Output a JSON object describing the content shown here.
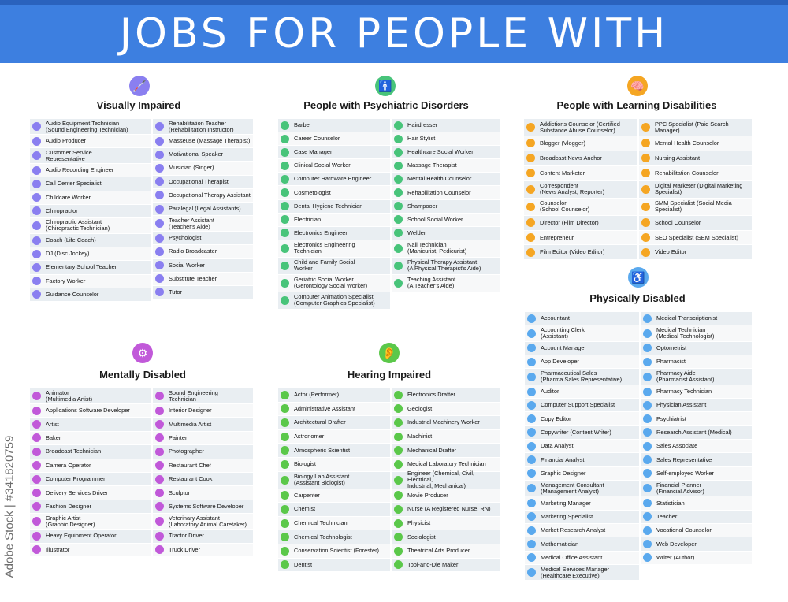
{
  "title": "JOBS FOR PEOPLE WITH DISABILITIES",
  "watermark": "Adobe Stock | #341820759",
  "sections": {
    "visual": {
      "title": "Visually Impaired",
      "icon": "blind-person-icon",
      "color": "#8a7ff0",
      "col1": [
        "Audio Equipment Technician\n(Sound Engineering Technician)",
        "Audio Producer",
        "Customer Service\nRepresentative",
        "Audio Recording Engineer",
        "Call Center Specialist",
        "Childcare Worker",
        "Chiropractor",
        "Chiropractic Assistant\n(Chiropractic Technician)",
        "Coach (Life Coach)",
        "DJ (Disc Jockey)",
        "Elementary School Teacher",
        "Factory Worker",
        "Guidance Counselor"
      ],
      "col2": [
        "Rehabilitation Teacher\n(Rehabilitation Instructor)",
        "Masseuse (Massage Therapist)",
        "Motivational Speaker",
        "Musician (Singer)",
        "Occupational Therapist",
        "Occupational Therapy Assistant",
        "Paralegal (Legal Assistants)",
        "Teacher Assistant\n(Teacher's Aide)",
        "Psychologist",
        "Radio Broadcaster",
        "Social Worker",
        "Substitute Teacher",
        "Tutor"
      ]
    },
    "psychiatric": {
      "title": "People with Psychiatric Disorders",
      "icon": "person-icon",
      "color": "#48c47a",
      "col1": [
        "Barber",
        "Career Counselor",
        "Case Manager",
        "Clinical Social Worker",
        "Computer Hardware Engineer",
        "Cosmetologist",
        "Dental Hygiene Technician",
        "Electrician",
        "Electronics Engineer",
        "Electronics Engineering\nTechnician",
        "Child and Family Social\nWorker",
        "Geriatric Social Worker\n(Gerontology Social Worker)",
        "Computer Animation Specialist\n(Computer Graphics Specialist)"
      ],
      "col2": [
        "Hairdresser",
        "Hair Stylist",
        "Healthcare Social Worker",
        "Massage Therapist",
        "Mental Health Counselor",
        "Rehabilitation Counselor",
        "Shampooer",
        "School Social Worker",
        "Welder",
        "Nail Technician\n(Manicurist, Pedicurist)",
        "Physical Therapy Assistant\n(A Physical Therapist's Aide)",
        "Teaching Assistant\n(A Teacher's Aide)"
      ]
    },
    "learning": {
      "title": "People with Learning Disabilities",
      "icon": "brain-head-icon",
      "color": "#f5a623",
      "col1": [
        "Addictions Counselor (Certified\nSubstance Abuse Counselor)",
        "Blogger (Vlogger)",
        "Broadcast News Anchor",
        "Content Marketer",
        "Correspondent\n(News Analyst, Reporter)",
        "Counselor\n(School Counselor)",
        "Director (Film Director)",
        "Entrepreneur",
        "Film Editor (Video Editor)"
      ],
      "col2": [
        "PPC Specialist (Paid Search\nManager)",
        "Mental Health Counselor",
        "Nursing Assistant",
        "Rehabilitation Counselor",
        "Digital Marketer (Digital Marketing\nSpecialist)",
        "SMM Specialist (Social Media\nSpecialist)",
        "School Counselor",
        "SEO Specialist (SEM Specialist)",
        "Video Editor"
      ]
    },
    "physical": {
      "title": "Physically Disabled",
      "icon": "wheelchair-icon",
      "color": "#5aa9ee",
      "col1": [
        "Accountant",
        "Accounting Clerk\n(Assistant)",
        "Account Manager",
        "App Developer",
        "Pharmaceutical Sales\n(Pharma Sales Representative)",
        "Auditor",
        "Computer Support Specialist",
        "Copy Editor",
        "Copywriter (Content Writer)",
        "Data Analyst",
        "Financial Analyst",
        "Graphic Designer",
        "Management Consultant\n(Management Analyst)",
        "Marketing Manager",
        "Marketing Specialist",
        "Market Research Analyst",
        "Mathematician",
        "Medical Office Assistant",
        "Medical Services Manager\n(Healthcare Executive)"
      ],
      "col2": [
        "Medical Transcriptionist",
        "Medical Technician\n(Medical Technologist)",
        "Optometrist",
        "Pharmacist",
        "Pharmacy Aide\n(Pharmacist Assistant)",
        "Pharmacy Technician",
        "Physician Assistant",
        "Psychiatrist",
        "Research Assistant (Medical)",
        "Sales Associate",
        "Sales Representative",
        "Self-employed Worker",
        "Financial Planner\n(Financial Advisor)",
        "Statistician",
        "Teacher",
        "Vocational Counselor",
        "Web Developer",
        "Writer (Author)"
      ]
    },
    "mental": {
      "title": "Mentally Disabled",
      "icon": "head-gears-icon",
      "color": "#c159d9",
      "col1": [
        "Animator\n(Multimedia Artist)",
        "Applications Software Developer",
        "Artist",
        "Baker",
        "Broadcast Technician",
        "Camera Operator",
        "Computer Programmer",
        "Delivery Services Driver",
        "Fashion Designer",
        "Graphic Artist\n(Graphic Designer)",
        "Heavy Equipment Operator",
        "Illustrator"
      ],
      "col2": [
        "Sound Engineering\nTechnician",
        "Interior Designer",
        "Multimedia Artist",
        "Painter",
        "Photographer",
        "Restaurant Chef",
        "Restaurant Cook",
        "Sculptor",
        "Systems Software Developer",
        "Veterinary Assistant\n(Laboratory Animal Caretaker)",
        "Tractor Driver",
        "Truck Driver"
      ]
    },
    "hearing": {
      "title": "Hearing Impaired",
      "icon": "ear-crossed-icon",
      "color": "#5bc84a",
      "col1": [
        "Actor (Performer)",
        "Administrative Assistant",
        "Architectural Drafter",
        "Astronomer",
        "Atmospheric Scientist",
        "Biologist",
        "Biology Lab Assistant\n(Assistant Biologist)",
        "Carpenter",
        "Chemist",
        "Chemical Technician",
        "Chemical Technologist",
        "Conservation Scientist (Forester)",
        "Dentist"
      ],
      "col2": [
        "Electronics Drafter",
        "Geologist",
        "Industrial Machinery Worker",
        "Machinist",
        "Mechanical Drafter",
        "Medical Laboratory Technician",
        "Engineer (Chemical, Civil, Electrical,\nIndustrial, Mechanical)",
        "Movie Producer",
        "Nurse (A Registered Nurse, RN)",
        "Physicist",
        "Sociologist",
        "Theatrical Arts Producer",
        "Tool-and-Die Maker"
      ]
    }
  }
}
